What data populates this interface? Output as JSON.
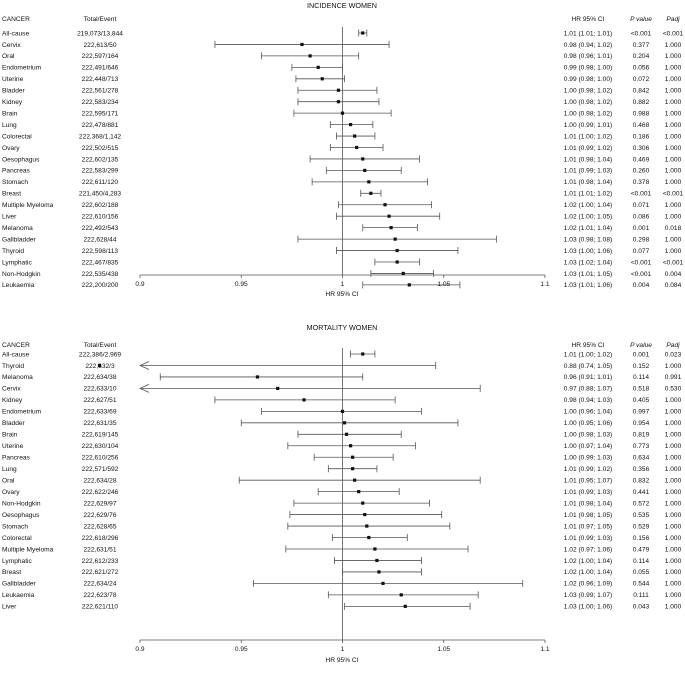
{
  "chart_data": [
    {
      "type": "forest",
      "title": "INCIDENCE WOMEN",
      "xlabel": "HR 95% CI",
      "xlim": [
        0.9,
        1.1
      ],
      "xticks": [
        "0.9",
        "0.95",
        "1",
        "1.05",
        "1.1"
      ],
      "reference_line": 1.0,
      "headers": {
        "cancer": "CANCER",
        "total": "Total/Event",
        "hrci": "HR 95% CI",
        "p": "P value",
        "padj": "Padj"
      },
      "rows": [
        {
          "cancer": "All-cause",
          "total": "219,073/13,844",
          "hr": 1.01,
          "lo": 1.008,
          "hi": 1.012,
          "hrci": "1.01 (1.01; 1.01)",
          "p": "<0.001",
          "padj": "<0.001"
        },
        {
          "cancer": "Cervix",
          "total": "222,613/50",
          "hr": 0.98,
          "lo": 0.937,
          "hi": 1.023,
          "hrci": "0.98 (0.94; 1.02)",
          "p": "0.377",
          "padj": "1.000"
        },
        {
          "cancer": "Oral",
          "total": "222,597/164",
          "hr": 0.984,
          "lo": 0.96,
          "hi": 1.008,
          "hrci": "0.98 (0.96; 1.01)",
          "p": "0.204",
          "padj": "1.000"
        },
        {
          "cancer": "Endometrium",
          "total": "222,491/646",
          "hr": 0.988,
          "lo": 0.975,
          "hi": 1.0,
          "hrci": "0.99 (0.98; 1.00)",
          "p": "0.056",
          "padj": "1.000"
        },
        {
          "cancer": "Uterine",
          "total": "222,448/713",
          "hr": 0.99,
          "lo": 0.977,
          "hi": 1.001,
          "hrci": "0.99 (0.98; 1.00)",
          "p": "0.072",
          "padj": "1.000"
        },
        {
          "cancer": "Bladder",
          "total": "222,561/278",
          "hr": 0.998,
          "lo": 0.978,
          "hi": 1.017,
          "hrci": "1.00 (0.98; 1.02)",
          "p": "0.842",
          "padj": "1.000"
        },
        {
          "cancer": "Kidney",
          "total": "222,583/234",
          "hr": 0.998,
          "lo": 0.978,
          "hi": 1.018,
          "hrci": "1.00 (0.98; 1.02)",
          "p": "0.882",
          "padj": "1.000"
        },
        {
          "cancer": "Brain",
          "total": "222,595/171",
          "hr": 1.0,
          "lo": 0.976,
          "hi": 1.024,
          "hrci": "1.00 (0.98; 1.02)",
          "p": "0.988",
          "padj": "1.000"
        },
        {
          "cancer": "Lung",
          "total": "222,478/881",
          "hr": 1.004,
          "lo": 0.994,
          "hi": 1.015,
          "hrci": "1.00 (0.99; 1.01)",
          "p": "0.468",
          "padj": "1.000"
        },
        {
          "cancer": "Colorectal",
          "total": "222,368/1,142",
          "hr": 1.006,
          "lo": 0.997,
          "hi": 1.016,
          "hrci": "1.01 (1.00; 1.02)",
          "p": "0.186",
          "padj": "1.000"
        },
        {
          "cancer": "Ovary",
          "total": "222,502/515",
          "hr": 1.007,
          "lo": 0.994,
          "hi": 1.02,
          "hrci": "1.01 (0.99; 1.02)",
          "p": "0.306",
          "padj": "1.000"
        },
        {
          "cancer": "Oesophagus",
          "total": "222,602/135",
          "hr": 1.01,
          "lo": 0.984,
          "hi": 1.038,
          "hrci": "1.01 (0.98; 1.04)",
          "p": "0.469",
          "padj": "1.000"
        },
        {
          "cancer": "Pancreas",
          "total": "222,583/299",
          "hr": 1.011,
          "lo": 0.992,
          "hi": 1.029,
          "hrci": "1.01 (0.99; 1.03)",
          "p": "0.260",
          "padj": "1.000"
        },
        {
          "cancer": "Stomach",
          "total": "222,611/120",
          "hr": 1.013,
          "lo": 0.985,
          "hi": 1.042,
          "hrci": "1.01 (0.98; 1.04)",
          "p": "0.378",
          "padj": "1.000"
        },
        {
          "cancer": "Breast",
          "total": "221,450/4,283",
          "hr": 1.014,
          "lo": 1.009,
          "hi": 1.019,
          "hrci": "1.01 (1.01; 1.02)",
          "p": "<0.001",
          "padj": "<0.001"
        },
        {
          "cancer": "Multiple Myeloma",
          "total": "222,602/188",
          "hr": 1.021,
          "lo": 0.998,
          "hi": 1.044,
          "hrci": "1.02 (1.00; 1.04)",
          "p": "0.071",
          "padj": "1.000"
        },
        {
          "cancer": "Liver",
          "total": "222,610/156",
          "hr": 1.023,
          "lo": 0.997,
          "hi": 1.048,
          "hrci": "1.02 (1.00; 1.05)",
          "p": "0.086",
          "padj": "1.000"
        },
        {
          "cancer": "Melanoma",
          "total": "222,492/543",
          "hr": 1.024,
          "lo": 1.01,
          "hi": 1.037,
          "hrci": "1.02 (1.01; 1.04)",
          "p": "0.001",
          "padj": "0.018"
        },
        {
          "cancer": "Gallbladder",
          "total": "222,628/44",
          "hr": 1.026,
          "lo": 0.978,
          "hi": 1.076,
          "hrci": "1.03 (0.98; 1.08)",
          "p": "0.298",
          "padj": "1.000"
        },
        {
          "cancer": "Thyroid",
          "total": "222,598/113",
          "hr": 1.027,
          "lo": 0.997,
          "hi": 1.057,
          "hrci": "1.03 (1.00; 1.06)",
          "p": "0.077",
          "padj": "1.000"
        },
        {
          "cancer": "Lymphatic",
          "total": "222,467/835",
          "hr": 1.027,
          "lo": 1.016,
          "hi": 1.038,
          "hrci": "1.03 (1.02; 1.04)",
          "p": "<0.001",
          "padj": "<0.001"
        },
        {
          "cancer": "Non-Hodgkin",
          "total": "222,535/438",
          "hr": 1.03,
          "lo": 1.014,
          "hi": 1.045,
          "hrci": "1.03 (1.01; 1.05)",
          "p": "<0.001",
          "padj": "0.004"
        },
        {
          "cancer": "Leukaemia",
          "total": "222,200/200",
          "hr": 1.033,
          "lo": 1.01,
          "hi": 1.058,
          "hrci": "1.03 (1.01; 1.06)",
          "p": "0.004",
          "padj": "0.084"
        }
      ]
    },
    {
      "type": "forest",
      "title": "MORTALITY WOMEN",
      "xlabel": "HR 95% CI",
      "xlim": [
        0.9,
        1.1
      ],
      "xticks": [
        "0.9",
        "0.95",
        "1",
        "1.05",
        "1.1"
      ],
      "reference_line": 1.0,
      "headers": {
        "cancer": "CANCER",
        "total": "Total/Event",
        "hrci": "HR 95% CI",
        "p": "P value",
        "padj": "Padj"
      },
      "rows": [
        {
          "cancer": "All-cause",
          "total": "222,386/2,969",
          "hr": 1.01,
          "lo": 1.004,
          "hi": 1.016,
          "hrci": "1.01 (1.00; 1.02)",
          "p": "0.001",
          "padj": "0.023"
        },
        {
          "cancer": "Thyroid",
          "total": "222,632/3",
          "hr": 0.88,
          "lo": 0.74,
          "hi": 1.046,
          "hrci": "0.88 (0.74; 1.05)",
          "p": "0.152",
          "padj": "1.000",
          "arrow_left": true
        },
        {
          "cancer": "Melanoma",
          "total": "222,634/38",
          "hr": 0.958,
          "lo": 0.91,
          "hi": 1.01,
          "hrci": "0.96 (0.91; 1.01)",
          "p": "0.114",
          "padj": "0.991"
        },
        {
          "cancer": "Cervix",
          "total": "222,633/10",
          "hr": 0.968,
          "lo": 0.88,
          "hi": 1.068,
          "hrci": "0.97 (0.88; 1.07)",
          "p": "0.518",
          "padj": "0.530",
          "arrow_left": true
        },
        {
          "cancer": "Kidney",
          "total": "222,627/51",
          "hr": 0.981,
          "lo": 0.937,
          "hi": 1.026,
          "hrci": "0.98 (0.94; 1.03)",
          "p": "0.405",
          "padj": "1.000"
        },
        {
          "cancer": "Endometrium",
          "total": "222,633/69",
          "hr": 1.0,
          "lo": 0.96,
          "hi": 1.039,
          "hrci": "1.00 (0.96; 1.04)",
          "p": "0.997",
          "padj": "1.000"
        },
        {
          "cancer": "Bladder",
          "total": "222,631/35",
          "hr": 1.001,
          "lo": 0.95,
          "hi": 1.057,
          "hrci": "1.00 (0.95; 1.06)",
          "p": "0.954",
          "padj": "1.000"
        },
        {
          "cancer": "Brain",
          "total": "222,619/145",
          "hr": 1.002,
          "lo": 0.978,
          "hi": 1.029,
          "hrci": "1.00 (0.98; 1.03)",
          "p": "0.819",
          "padj": "1.000"
        },
        {
          "cancer": "Uterine",
          "total": "222,630/104",
          "hr": 1.004,
          "lo": 0.973,
          "hi": 1.036,
          "hrci": "1.00 (0.97; 1.04)",
          "p": "0.773",
          "padj": "1.000"
        },
        {
          "cancer": "Pancreas",
          "total": "222,610/256",
          "hr": 1.005,
          "lo": 0.986,
          "hi": 1.025,
          "hrci": "1.00 (0.99; 1.03)",
          "p": "0.634",
          "padj": "1.000"
        },
        {
          "cancer": "Lung",
          "total": "222,571/592",
          "hr": 1.005,
          "lo": 0.993,
          "hi": 1.017,
          "hrci": "1.01 (0.99; 1.02)",
          "p": "0.356",
          "padj": "1.000"
        },
        {
          "cancer": "Oral",
          "total": "222,634/28",
          "hr": 1.006,
          "lo": 0.949,
          "hi": 1.068,
          "hrci": "1.01 (0.95; 1.07)",
          "p": "0.832",
          "padj": "1.000"
        },
        {
          "cancer": "Ovary",
          "total": "222,622/246",
          "hr": 1.008,
          "lo": 0.988,
          "hi": 1.028,
          "hrci": "1.01 (0.99; 1.03)",
          "p": "0.441",
          "padj": "1.000"
        },
        {
          "cancer": "Non-Hodgkin",
          "total": "222,629/97",
          "hr": 1.01,
          "lo": 0.976,
          "hi": 1.043,
          "hrci": "1.01 (0.98; 1.04)",
          "p": "0.572",
          "padj": "1.000"
        },
        {
          "cancer": "Oesophagus",
          "total": "222,629/76",
          "hr": 1.011,
          "lo": 0.974,
          "hi": 1.049,
          "hrci": "1.01 (0.98; 1.05)",
          "p": "0.535",
          "padj": "1.000"
        },
        {
          "cancer": "Stomach",
          "total": "222,628/65",
          "hr": 1.012,
          "lo": 0.973,
          "hi": 1.053,
          "hrci": "1.01 (0.97; 1.05)",
          "p": "0.529",
          "padj": "1.000"
        },
        {
          "cancer": "Colorectal",
          "total": "222,618/296",
          "hr": 1.013,
          "lo": 0.995,
          "hi": 1.032,
          "hrci": "1.01 (0.99; 1.03)",
          "p": "0.156",
          "padj": "1.000"
        },
        {
          "cancer": "Multiple Myeloma",
          "total": "222,631/51",
          "hr": 1.016,
          "lo": 0.972,
          "hi": 1.062,
          "hrci": "1.02 (0.97; 1.06)",
          "p": "0.479",
          "padj": "1.000"
        },
        {
          "cancer": "Lymphatic",
          "total": "222,612/233",
          "hr": 1.017,
          "lo": 0.996,
          "hi": 1.039,
          "hrci": "1.02 (1.00; 1.04)",
          "p": "0.114",
          "padj": "1.000"
        },
        {
          "cancer": "Breast",
          "total": "222,621/272",
          "hr": 1.018,
          "lo": 1.0,
          "hi": 1.039,
          "hrci": "1.02 (1.00; 1.04)",
          "p": "0.055",
          "padj": "1.000"
        },
        {
          "cancer": "Gallbladder",
          "total": "222,634/24",
          "hr": 1.02,
          "lo": 0.956,
          "hi": 1.089,
          "hrci": "1.02 (0.96; 1.09)",
          "p": "0.544",
          "padj": "1.000"
        },
        {
          "cancer": "Leukaemia",
          "total": "222,623/78",
          "hr": 1.029,
          "lo": 0.993,
          "hi": 1.067,
          "hrci": "1.03 (0.99; 1.07)",
          "p": "0.111",
          "padj": "1.000"
        },
        {
          "cancer": "Liver",
          "total": "222,621/110",
          "hr": 1.031,
          "lo": 1.001,
          "hi": 1.063,
          "hrci": "1.03 (1.00; 1.06)",
          "p": "0.043",
          "padj": "1.000"
        }
      ]
    }
  ],
  "style": {
    "line_color": "#555555",
    "point_color": "#111111",
    "text_color": "#111111"
  }
}
